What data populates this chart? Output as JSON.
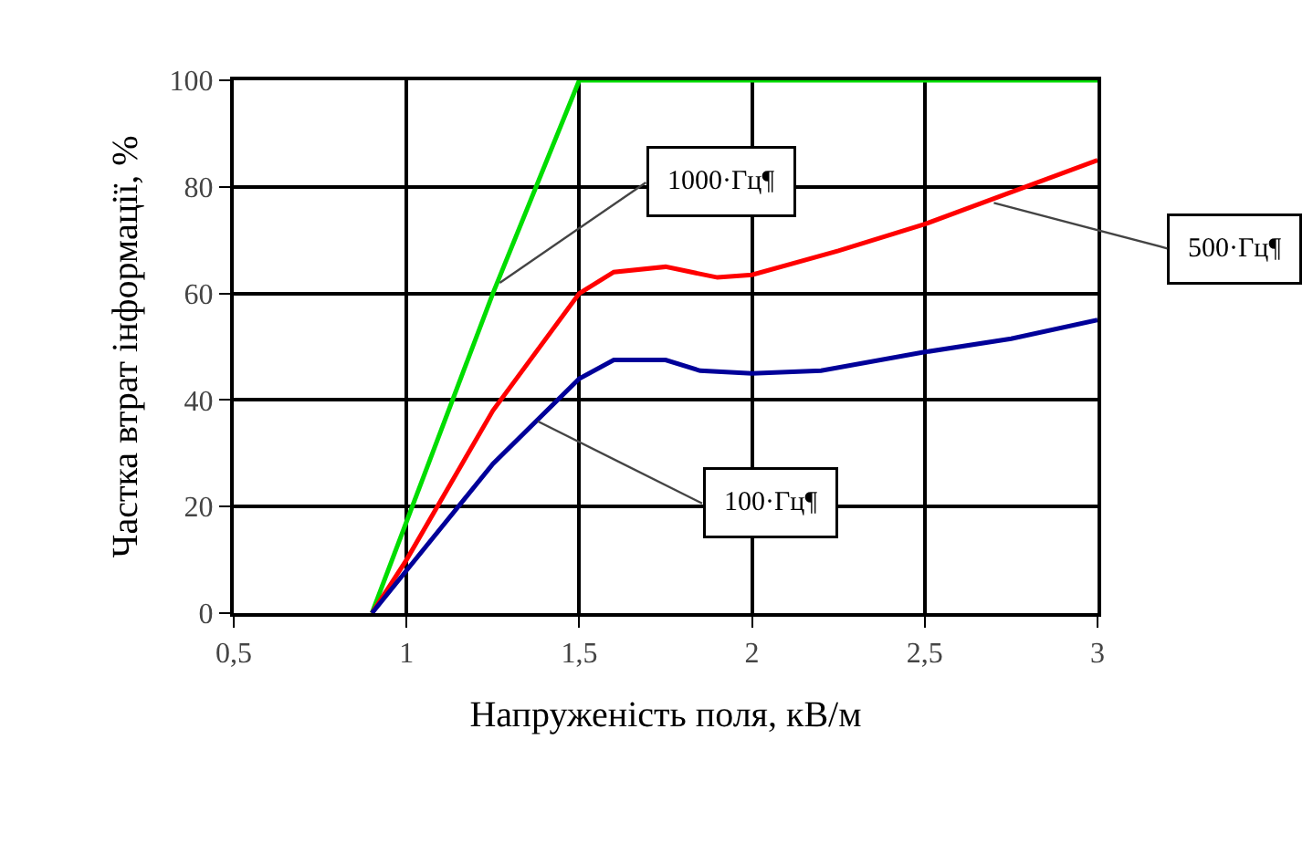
{
  "chart_data": {
    "type": "line",
    "xlabel": "Напруженість поля, кВ/м",
    "ylabel": "Частка втрат інформації, %",
    "xlim": [
      0.5,
      3
    ],
    "xticks": [
      {
        "value": 0.5,
        "label": "0,5"
      },
      1,
      {
        "value": 1.5,
        "label": "1,5"
      },
      2,
      {
        "value": 2.5,
        "label": "2,5"
      },
      3
    ],
    "ylim": [
      0,
      100
    ],
    "yticks": [
      0,
      20,
      40,
      60,
      80,
      100
    ],
    "grid": true,
    "marker": "none",
    "line_style": "solid",
    "series": [
      {
        "color": "#00dd00",
        "x": [
          0.9,
          1.25,
          1.5,
          3
        ],
        "values": [
          0,
          60,
          100,
          100
        ]
      },
      {
        "color": "#ff0000",
        "x": [
          0.9,
          1,
          1.25,
          1.5,
          1.6,
          1.75,
          1.9,
          2,
          2.25,
          2.5,
          2.75,
          3
        ],
        "values": [
          0,
          10,
          38,
          60,
          64,
          65,
          63,
          63.5,
          68,
          73,
          79,
          85
        ]
      },
      {
        "color": "#000099",
        "x": [
          0.9,
          1,
          1.25,
          1.5,
          1.6,
          1.75,
          1.85,
          2,
          2.2,
          2.5,
          2.75,
          3
        ],
        "values": [
          0,
          8,
          28,
          44,
          47.5,
          47.5,
          45.5,
          45,
          45.5,
          49,
          51.5,
          55
        ]
      }
    ],
    "annotations": [
      {
        "text": "1000·Гц¶",
        "x": 1.27,
        "y": 62
      },
      {
        "text": "500·Гц¶",
        "x": 2.7,
        "y": 77
      },
      {
        "text": "100·Гц¶",
        "x": 1.38,
        "y": 36
      }
    ]
  }
}
